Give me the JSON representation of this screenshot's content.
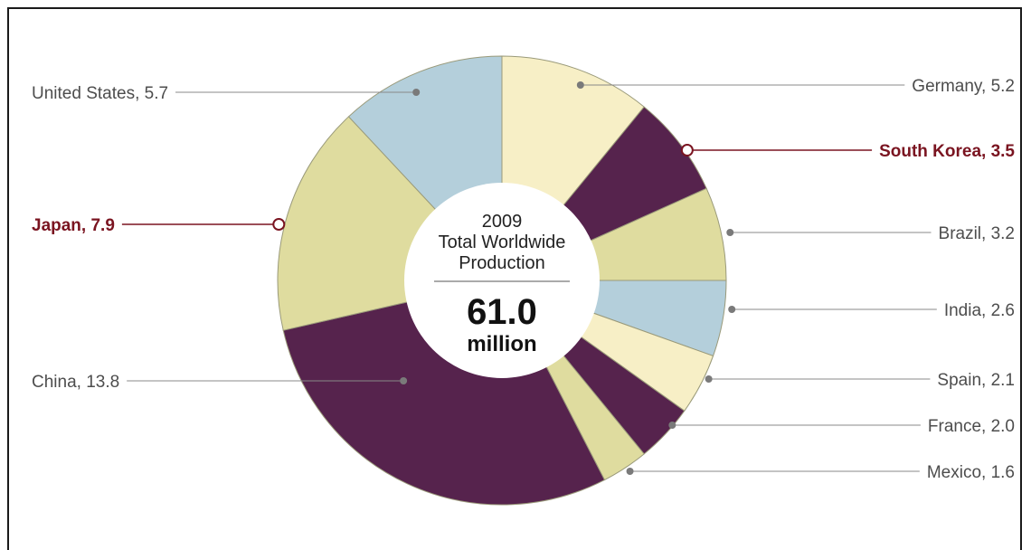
{
  "chart_data": {
    "type": "pie",
    "center": {
      "year": "2009",
      "line1": "Total Worldwide",
      "line2": "Production",
      "total_value": "61.0",
      "total_unit": "million"
    },
    "slices": [
      {
        "label": "Germany, 5.2",
        "name": "Germany",
        "value": 5.2,
        "color": "#f7efc6",
        "highlight": false
      },
      {
        "label": "South Korea, 3.5",
        "name": "South Korea",
        "value": 3.5,
        "color": "#56234d",
        "highlight": true
      },
      {
        "label": "Brazil, 3.2",
        "name": "Brazil",
        "value": 3.2,
        "color": "#dfdc9f",
        "highlight": false
      },
      {
        "label": "India, 2.6",
        "name": "India",
        "value": 2.6,
        "color": "#b4cfdb",
        "highlight": false
      },
      {
        "label": "Spain, 2.1",
        "name": "Spain",
        "value": 2.1,
        "color": "#f7efc6",
        "highlight": false
      },
      {
        "label": "France, 2.0",
        "name": "France",
        "value": 2.0,
        "color": "#56234d",
        "highlight": false
      },
      {
        "label": "Mexico, 1.6",
        "name": "Mexico",
        "value": 1.6,
        "color": "#dfdc9f",
        "highlight": false
      },
      {
        "label": "China, 13.8",
        "name": "China",
        "value": 13.8,
        "color": "#56234d",
        "highlight": false
      },
      {
        "label": "Japan, 7.9",
        "name": "Japan",
        "value": 7.9,
        "color": "#dfdc9f",
        "highlight": true
      },
      {
        "label": "United States, 5.7",
        "name": "United States",
        "value": 5.7,
        "color": "#b4cfdb",
        "highlight": false
      }
    ],
    "colors": {
      "highlight_text": "#7a1420",
      "label_text": "#4d4d4d",
      "leader_line": "#888888",
      "slice_stroke": "#9a9a7a"
    }
  }
}
